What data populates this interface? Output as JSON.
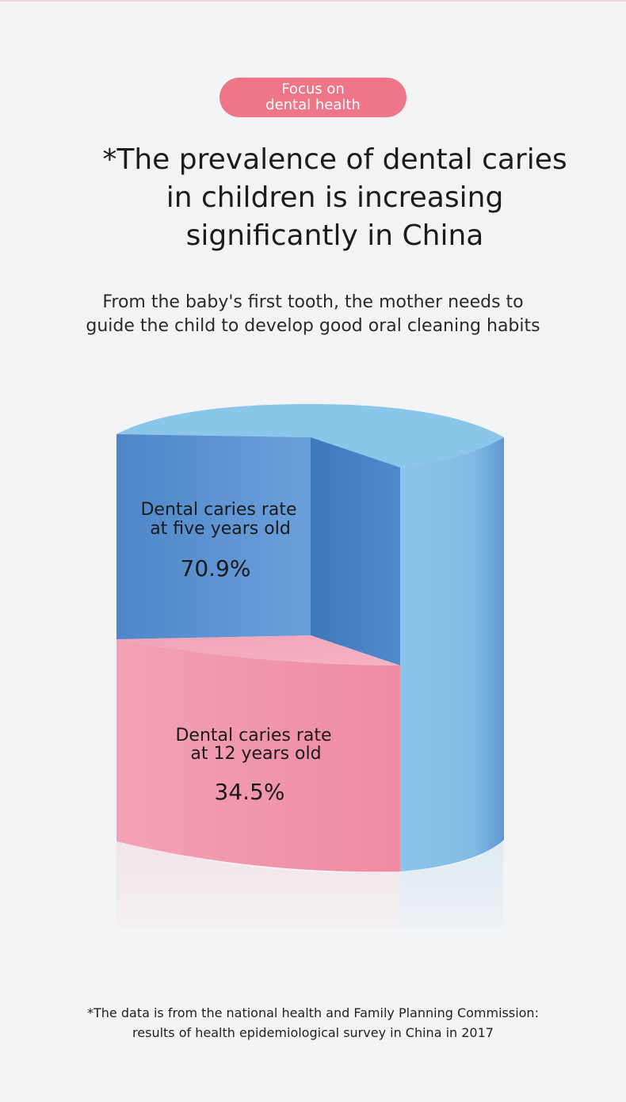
{
  "badge": {
    "line1": "Focus on",
    "line2": "dental health"
  },
  "headline": {
    "line1": "*The prevalence of dental caries",
    "line2": "in children is increasing",
    "line3": "significantly in China"
  },
  "subheadline": {
    "line1": "From the baby's first tooth, the mother needs to",
    "line2": "guide the child to develop good oral cleaning habits"
  },
  "chart_data": {
    "type": "bar",
    "style": "3d-cylinder",
    "categories": [
      "Dental caries rate at five years old",
      "Dental caries rate at 12 years old"
    ],
    "values": [
      70.9,
      34.5
    ],
    "unit": "%",
    "series": [
      {
        "label_line1": "Dental caries rate",
        "label_line2": "at five years old",
        "value": 70.9,
        "value_text": "70.9%",
        "color": "#5b93d4"
      },
      {
        "label_line1": "Dental caries rate",
        "label_line2": "at 12 years old",
        "value": 34.5,
        "value_text": "34.5%",
        "color": "#f08ea6"
      }
    ],
    "colors": {
      "cylinder_top": "#8cc5ea",
      "cylinder_side": "#7fb8e3",
      "cut_face_blue": "#4a86c8",
      "cut_face_pink": "#f3a6b9"
    }
  },
  "footnote": {
    "line1": "*The data is from the national health and Family Planning Commission:",
    "line2": "results of health epidemiological survey in China in 2017"
  }
}
